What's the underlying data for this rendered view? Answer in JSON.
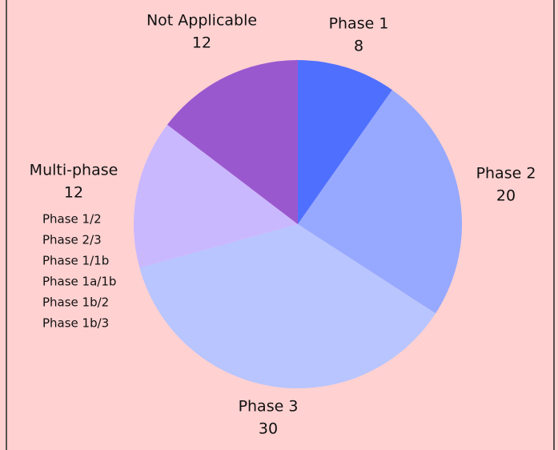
{
  "chart_data": {
    "type": "pie",
    "categories": [
      "Phase 1",
      "Phase 2",
      "Phase 3",
      "Multi-phase",
      "Not Applicable"
    ],
    "values": [
      8,
      20,
      30,
      12,
      12
    ],
    "colors": [
      "#4f70ff",
      "#97a9ff",
      "#b8c5ff",
      "#cab8ff",
      "#9a58cf"
    ],
    "annotations": [
      "Phase 1/2",
      "Phase 2/3",
      "Phase 1/1b",
      "Phase 1a/1b",
      "Phase 1b/2",
      "Phase 1b/3"
    ]
  }
}
